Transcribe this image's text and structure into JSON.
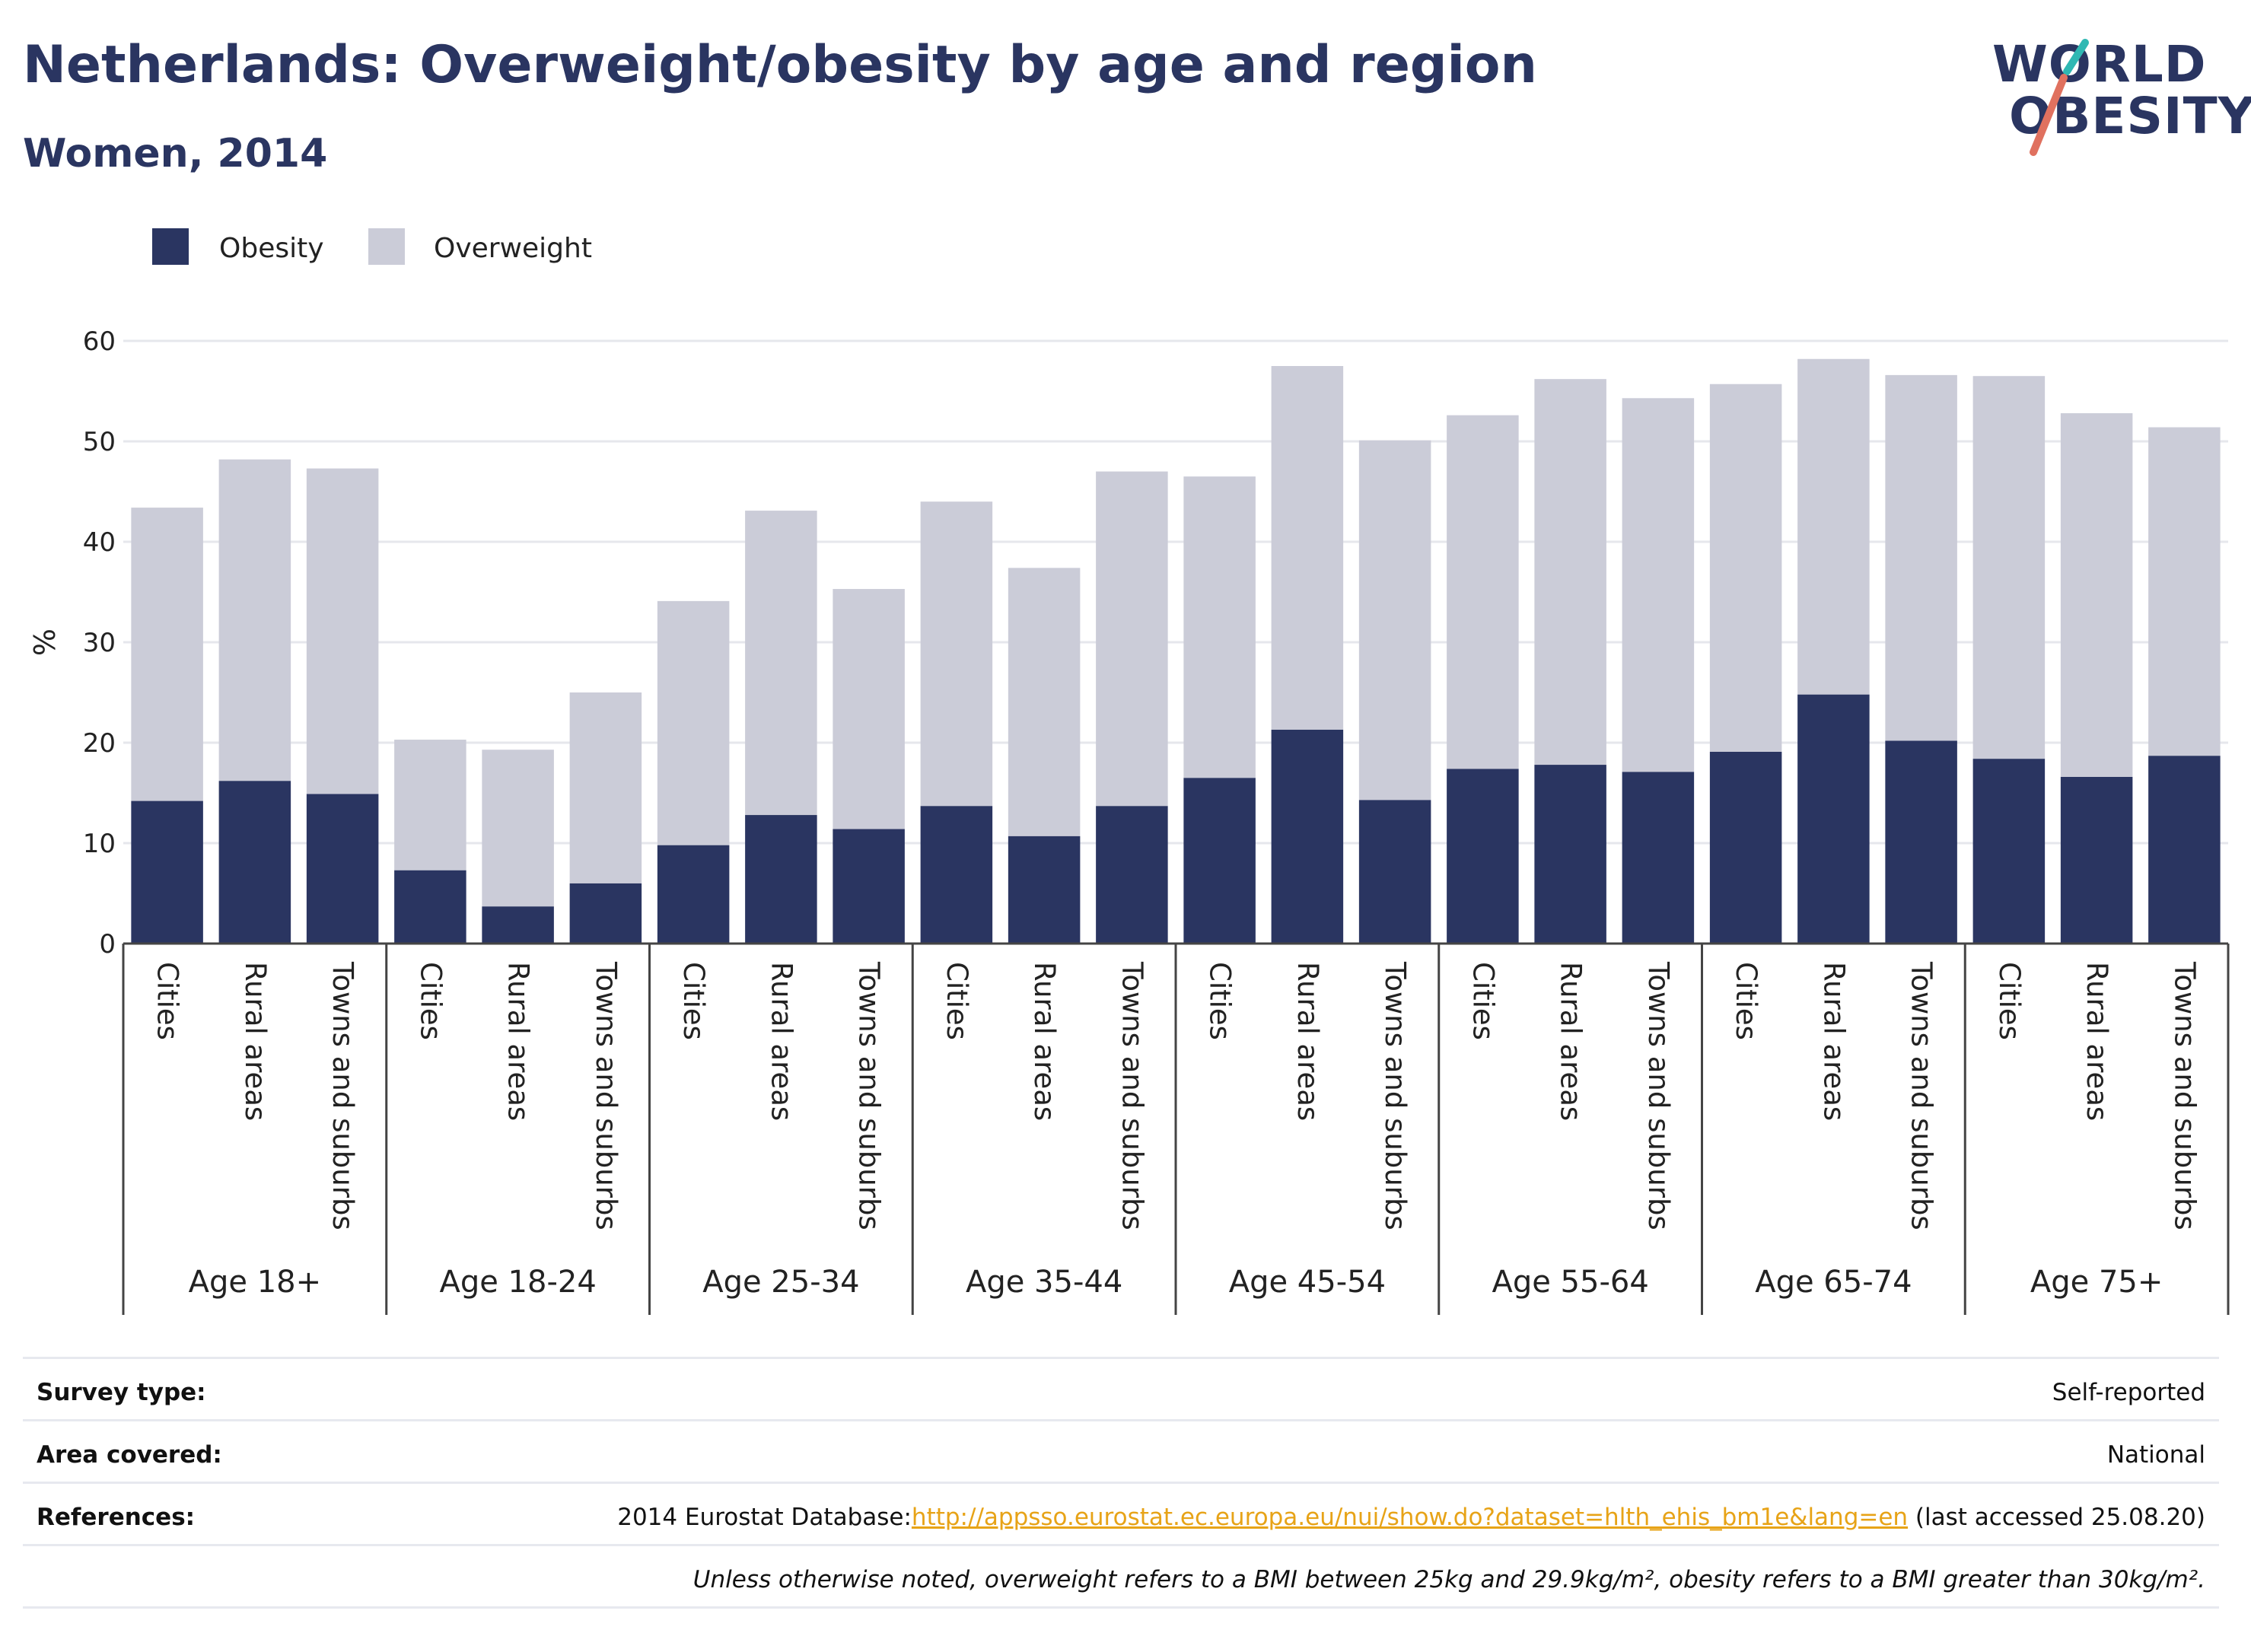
{
  "header": {
    "title": "Netherlands: Overweight/obesity by age and region",
    "subtitle": "Women, 2014"
  },
  "logo": {
    "line1": "WORLD",
    "line2": "OBESITY"
  },
  "colors": {
    "obesity": "#2a3561",
    "overweight": "#cbccd8",
    "accent_teal": "#2fb8b3",
    "accent_red": "#e0715f",
    "link": "#e7a317"
  },
  "chart_data": {
    "type": "bar",
    "stacked": true,
    "ylabel": "%",
    "ylim": [
      0,
      60
    ],
    "yticks": [
      0,
      10,
      20,
      30,
      40,
      50,
      60
    ],
    "legend": {
      "placement": "top-left",
      "entries": [
        "Obesity",
        "Overweight"
      ]
    },
    "grid": true,
    "groups": [
      "Age 18+",
      "Age 18-24",
      "Age 25-34",
      "Age 35-44",
      "Age 45-54",
      "Age 55-64",
      "Age 65-74",
      "Age 75+"
    ],
    "subcategories": [
      "Cities",
      "Rural areas",
      "Towns and suburbs"
    ],
    "series": [
      {
        "name": "Obesity",
        "values": [
          14.2,
          16.2,
          14.9,
          7.3,
          3.7,
          6.0,
          9.8,
          12.8,
          11.4,
          13.7,
          10.7,
          13.7,
          16.5,
          21.3,
          14.3,
          17.4,
          17.8,
          17.1,
          19.1,
          24.8,
          20.2,
          18.4,
          16.6,
          18.7
        ]
      },
      {
        "name": "Overweight",
        "values": [
          29.2,
          32.0,
          32.4,
          13.0,
          15.6,
          19.0,
          24.3,
          30.3,
          23.9,
          30.3,
          26.7,
          33.3,
          30.0,
          36.2,
          35.8,
          35.2,
          38.4,
          37.2,
          36.6,
          33.4,
          36.4,
          38.1,
          36.2,
          32.7
        ]
      }
    ]
  },
  "info": {
    "survey_type": {
      "label": "Survey type:",
      "value": "Self-reported"
    },
    "area_covered": {
      "label": "Area covered:",
      "value": "National"
    },
    "references": {
      "label": "References:",
      "prefix": "2014 Eurostat Database:",
      "link": "http://appsso.eurostat.ec.europa.eu/nui/show.do?dataset=hlth_ehis_bm1e&lang=en",
      "suffix": " (last accessed 25.08.20)"
    },
    "note": "Unless otherwise noted, overweight refers to a BMI between 25kg and 29.9kg/m², obesity refers to a BMI greater than 30kg/m²."
  }
}
